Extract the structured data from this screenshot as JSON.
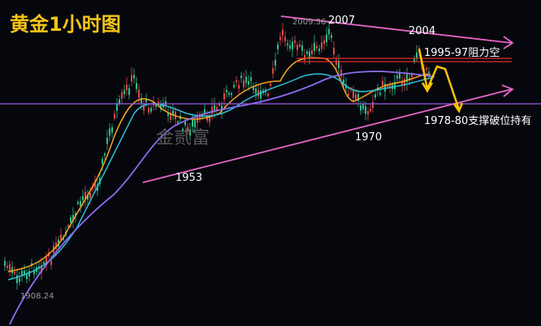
{
  "title": "黄金1小时图",
  "watermark": "金贰富",
  "annotations": {
    "high_price": "2009.36",
    "low_price": "1908.24",
    "peak_left": "2007",
    "peak_right": "2004",
    "resistance": "1995-97阻力空",
    "support": "1978-80支撑破位持有",
    "low_mid": "1970",
    "low_left": "1953"
  }
}
